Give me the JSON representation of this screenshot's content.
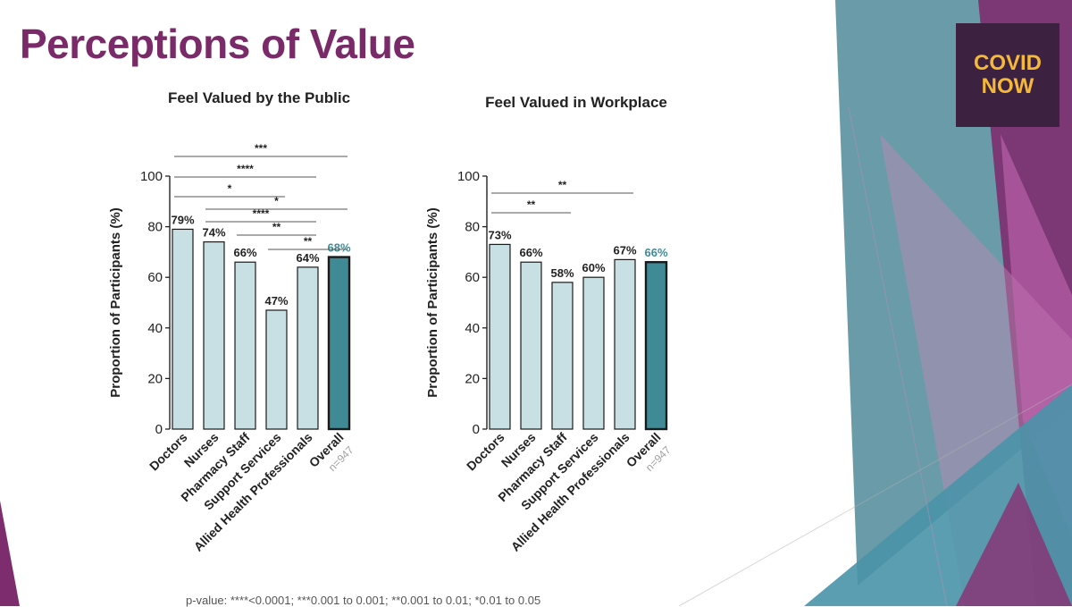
{
  "slide": {
    "title": "Perceptions of Value",
    "footnote": "p-value: ****<0.0001; ***0.001 to 0.001; **0.001 to 0.01; *0.01 to 0.05"
  },
  "logo": {
    "line1": "COVID",
    "line2": "NOW"
  },
  "colors": {
    "title": "#7a2a68",
    "bar_fill": "#c8e0e4",
    "overall_fill": "#3f8a95",
    "overall_label": "#3f8a95",
    "logo_bg": "#3c2140",
    "logo_text": "#f4b93a"
  },
  "chart_data": [
    {
      "type": "bar",
      "title": "Feel Valued by the Public",
      "ylabel": "Proportion of Participants (%)",
      "xlabel": "",
      "ylim": [
        0,
        100
      ],
      "yticks": [
        "0",
        "20",
        "40",
        "60",
        "80",
        "100"
      ],
      "categories": [
        "Doctors",
        "Nurses",
        "Pharmacy Staff",
        "Support Services",
        "Allied Health Professionals",
        "Overall"
      ],
      "values": [
        79,
        74,
        66,
        47,
        64,
        68
      ],
      "data_labels": [
        "79%",
        "74%",
        "66%",
        "47%",
        "64%",
        "68%"
      ],
      "overall_note": "n=947",
      "significance": [
        {
          "from": 0,
          "to": 5,
          "label": "***"
        },
        {
          "from": 0,
          "to": 4,
          "label": "****"
        },
        {
          "from": 0,
          "to": 3,
          "label": "*"
        },
        {
          "from": 1,
          "to": 5,
          "label": "*"
        },
        {
          "from": 1,
          "to": 4,
          "label": "****"
        },
        {
          "from": 2,
          "to": 4,
          "label": "**"
        },
        {
          "from": 3,
          "to": 5,
          "label": "**"
        }
      ]
    },
    {
      "type": "bar",
      "title": "Feel Valued in Workplace",
      "ylabel": "Proportion of Participants (%)",
      "xlabel": "",
      "ylim": [
        0,
        100
      ],
      "yticks": [
        "0",
        "20",
        "40",
        "60",
        "80",
        "100"
      ],
      "categories": [
        "Doctors",
        "Nurses",
        "Pharmacy Staff",
        "Support Services",
        "Allied Health Professionals",
        "Overall"
      ],
      "values": [
        73,
        66,
        58,
        60,
        67,
        66
      ],
      "data_labels": [
        "73%",
        "66%",
        "58%",
        "60%",
        "67%",
        "66%"
      ],
      "overall_note": "n=947",
      "significance": [
        {
          "from": 0,
          "to": 4,
          "label": "**"
        },
        {
          "from": 0,
          "to": 2,
          "label": "**"
        }
      ]
    }
  ]
}
